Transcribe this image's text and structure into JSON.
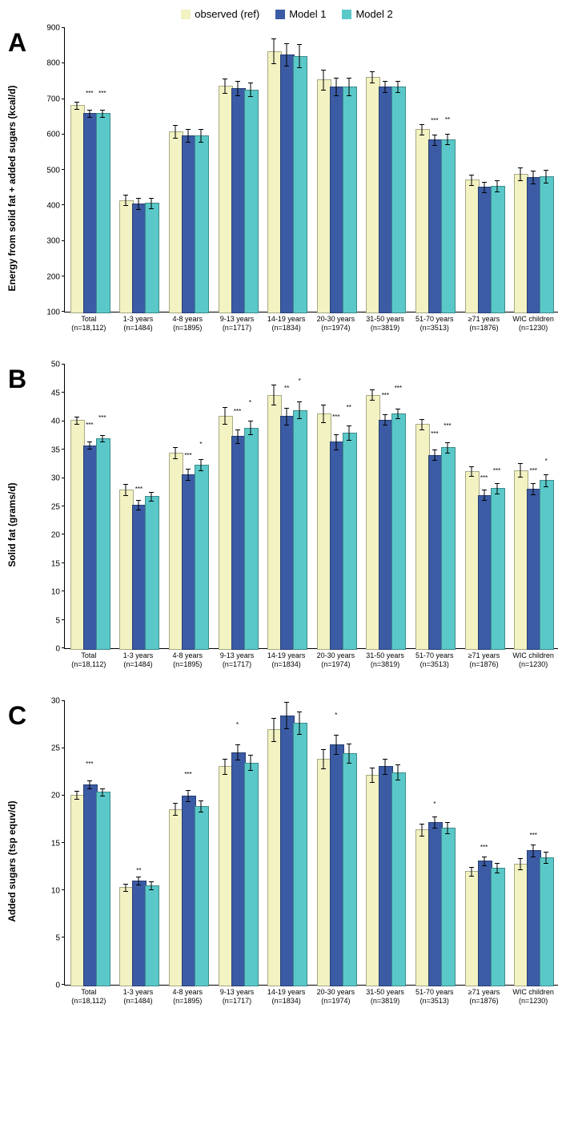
{
  "legend": {
    "items": [
      {
        "label": "observed (ref)",
        "color": "#f2f2c2"
      },
      {
        "label": "Model 1",
        "color": "#3b5ba5"
      },
      {
        "label": "Model 2",
        "color": "#5ac8c8"
      }
    ]
  },
  "categories": [
    {
      "label": "Total",
      "n": "(n=18,112)"
    },
    {
      "label": "1-3 years",
      "n": "(n=1484)"
    },
    {
      "label": "4-8 years",
      "n": "(n=1895)"
    },
    {
      "label": "9-13 years",
      "n": "(n=1717)"
    },
    {
      "label": "14-19 years",
      "n": "(n=1834)"
    },
    {
      "label": "20-30 years",
      "n": "(n=1974)"
    },
    {
      "label": "31-50 years",
      "n": "(n=3819)"
    },
    {
      "label": "51-70 years",
      "n": "(n=3513)"
    },
    {
      "label": "≥71 years",
      "n": "(n=1876)"
    },
    {
      "label": "WIC children",
      "n": "(n=1230)"
    }
  ],
  "colors": {
    "observed": "#f2f2c2",
    "model1": "#3b5ba5",
    "model2": "#5ac8c8",
    "border": "#666666",
    "axis": "#000000"
  },
  "charts": [
    {
      "panel": "A",
      "ylabel": "Energy from solid fat + added sugars (kcal/d)",
      "ymin": 100,
      "ymax": 900,
      "ystep": 100,
      "groups": [
        {
          "vals": [
            682,
            660,
            660
          ],
          "errs": [
            10,
            10,
            10
          ],
          "sig": [
            "",
            "***",
            "***"
          ]
        },
        {
          "vals": [
            415,
            405,
            407
          ],
          "errs": [
            15,
            15,
            15
          ],
          "sig": [
            "",
            "",
            ""
          ]
        },
        {
          "vals": [
            608,
            597,
            598
          ],
          "errs": [
            18,
            18,
            18
          ],
          "sig": [
            "",
            "",
            ""
          ]
        },
        {
          "vals": [
            738,
            730,
            727
          ],
          "errs": [
            20,
            20,
            20
          ],
          "sig": [
            "",
            "",
            ""
          ]
        },
        {
          "vals": [
            835,
            825,
            822
          ],
          "errs": [
            35,
            32,
            32
          ],
          "sig": [
            "",
            "",
            ""
          ]
        },
        {
          "vals": [
            755,
            735,
            735
          ],
          "errs": [
            28,
            25,
            25
          ],
          "sig": [
            "",
            "",
            ""
          ]
        },
        {
          "vals": [
            762,
            735,
            735
          ],
          "errs": [
            15,
            15,
            15
          ],
          "sig": [
            "",
            "",
            ""
          ]
        },
        {
          "vals": [
            615,
            585,
            587
          ],
          "errs": [
            15,
            15,
            15
          ],
          "sig": [
            "",
            "***",
            "**"
          ]
        },
        {
          "vals": [
            472,
            452,
            455
          ],
          "errs": [
            15,
            15,
            15
          ],
          "sig": [
            "",
            "",
            ""
          ]
        },
        {
          "vals": [
            488,
            480,
            481
          ],
          "errs": [
            18,
            18,
            18
          ],
          "sig": [
            "",
            "",
            ""
          ]
        }
      ]
    },
    {
      "panel": "B",
      "ylabel": "Solid fat (grams/d)",
      "ymin": 0,
      "ymax": 50,
      "ystep": 5,
      "groups": [
        {
          "vals": [
            40.2,
            35.8,
            37.0
          ],
          "errs": [
            0.6,
            0.6,
            0.6
          ],
          "sig": [
            "",
            "***",
            "***"
          ]
        },
        {
          "vals": [
            28.0,
            25.3,
            26.8
          ],
          "errs": [
            1.0,
            0.8,
            0.8
          ],
          "sig": [
            "",
            "***",
            ""
          ]
        },
        {
          "vals": [
            34.5,
            30.6,
            32.3
          ],
          "errs": [
            1.0,
            1.0,
            1.0
          ],
          "sig": [
            "",
            "***",
            "*"
          ]
        },
        {
          "vals": [
            41.0,
            37.4,
            38.9
          ],
          "errs": [
            1.5,
            1.2,
            1.2
          ],
          "sig": [
            "",
            "***",
            "*"
          ]
        },
        {
          "vals": [
            44.7,
            40.9,
            42.0
          ],
          "errs": [
            1.8,
            1.5,
            1.5
          ],
          "sig": [
            "",
            "**",
            "*"
          ]
        },
        {
          "vals": [
            41.4,
            36.4,
            38.0
          ],
          "errs": [
            1.5,
            1.3,
            1.3
          ],
          "sig": [
            "",
            "***",
            "**"
          ]
        },
        {
          "vals": [
            44.7,
            40.3,
            41.4
          ],
          "errs": [
            0.9,
            0.9,
            0.9
          ],
          "sig": [
            "",
            "***",
            "***"
          ]
        },
        {
          "vals": [
            39.5,
            34.1,
            35.4
          ],
          "errs": [
            0.9,
            0.9,
            0.9
          ],
          "sig": [
            "",
            "***",
            "***"
          ]
        },
        {
          "vals": [
            31.2,
            27.0,
            28.2
          ],
          "errs": [
            0.9,
            0.9,
            0.9
          ],
          "sig": [
            "",
            "***",
            "***"
          ]
        },
        {
          "vals": [
            31.4,
            28.1,
            29.6
          ],
          "errs": [
            1.2,
            1.0,
            1.0
          ],
          "sig": [
            "",
            "***",
            "*"
          ]
        }
      ]
    },
    {
      "panel": "C",
      "ylabel": "Added sugars (tsp equv/d)",
      "ymin": 0,
      "ymax": 30,
      "ystep": 5,
      "groups": [
        {
          "vals": [
            20.1,
            21.2,
            20.4
          ],
          "errs": [
            0.4,
            0.4,
            0.4
          ],
          "sig": [
            "",
            "***",
            ""
          ]
        },
        {
          "vals": [
            10.3,
            11.0,
            10.5
          ],
          "errs": [
            0.4,
            0.4,
            0.4
          ],
          "sig": [
            "",
            "**",
            ""
          ]
        },
        {
          "vals": [
            18.6,
            20.0,
            18.9
          ],
          "errs": [
            0.6,
            0.6,
            0.6
          ],
          "sig": [
            "",
            "***",
            ""
          ]
        },
        {
          "vals": [
            23.1,
            24.6,
            23.5
          ],
          "errs": [
            0.8,
            0.8,
            0.8
          ],
          "sig": [
            "",
            "*",
            ""
          ]
        },
        {
          "vals": [
            27.0,
            28.5,
            27.7
          ],
          "errs": [
            1.2,
            1.4,
            1.2
          ],
          "sig": [
            "",
            "",
            ""
          ]
        },
        {
          "vals": [
            23.9,
            25.4,
            24.5
          ],
          "errs": [
            1.0,
            1.0,
            1.0
          ],
          "sig": [
            "",
            "*",
            ""
          ]
        },
        {
          "vals": [
            22.2,
            23.1,
            22.5
          ],
          "errs": [
            0.8,
            0.8,
            0.8
          ],
          "sig": [
            "",
            "",
            ""
          ]
        },
        {
          "vals": [
            16.4,
            17.2,
            16.6
          ],
          "errs": [
            0.6,
            0.6,
            0.6
          ],
          "sig": [
            "",
            "*",
            ""
          ]
        },
        {
          "vals": [
            12.0,
            13.1,
            12.4
          ],
          "errs": [
            0.5,
            0.5,
            0.5
          ],
          "sig": [
            "",
            "***",
            ""
          ]
        },
        {
          "vals": [
            12.8,
            14.2,
            13.5
          ],
          "errs": [
            0.6,
            0.6,
            0.6
          ],
          "sig": [
            "",
            "***",
            ""
          ]
        }
      ]
    }
  ]
}
